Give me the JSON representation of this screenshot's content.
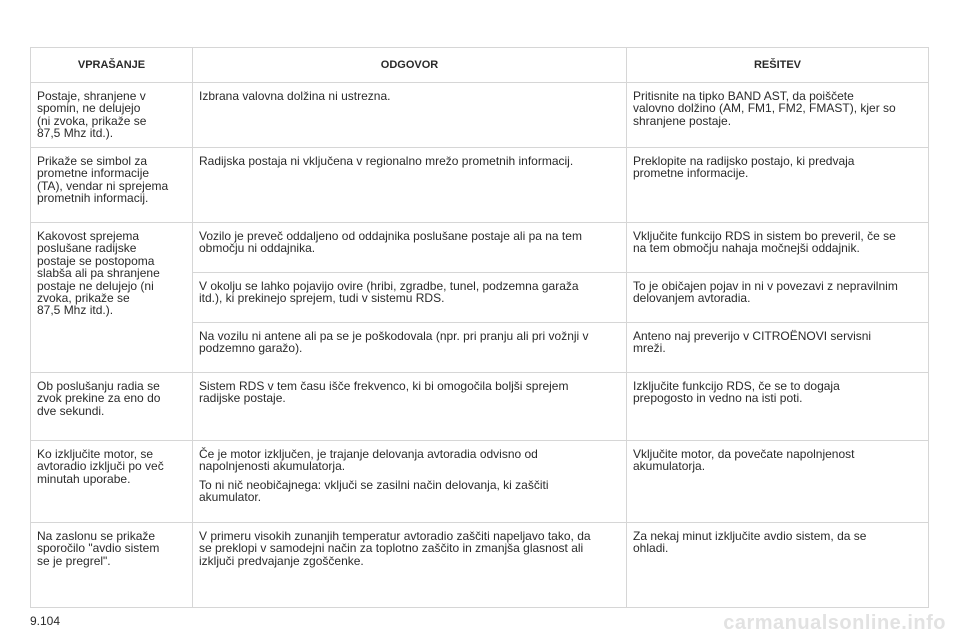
{
  "table": {
    "headers": [
      "VPRAŠANJE",
      "ODGOVOR",
      "REŠITEV"
    ],
    "rows": [
      {
        "question": "Postaje, shranjene v\nspomin, ne delujejo\n(ni zvoka, prikaže se\n87,5 Mhz itd.).",
        "answers": [
          {
            "answer": "Izbrana valovna dolžina ni ustrezna.",
            "solution": "Pritisnite na tipko BAND AST, da poiščete\nvalovno dolžino (AM, FM1, FM2, FMAST), kjer so\nshranjene postaje."
          }
        ]
      },
      {
        "question": "Prikaže se simbol za\nprometne informacije\n(TA), vendar ni sprejema\nprometnih informacij.",
        "answers": [
          {
            "answer": "Radijska postaja ni vključena v regionalno mrežo prometnih informacij.",
            "solution": "Preklopite na radijsko postajo, ki predvaja\nprometne informacije."
          }
        ]
      },
      {
        "question": "Kakovost sprejema\nposlušane radijske\npostaje se postopoma\nslabša ali pa shranjene\npostaje ne delujejo (ni\nzvoka, prikaže se\n87,5 Mhz itd.).",
        "answers": [
          {
            "answer": "Vozilo je preveč oddaljeno od oddajnika poslušane postaje ali pa na tem\nobmočju ni oddajnika.",
            "solution": "Vključite funkcijo RDS in sistem bo preveril, če se\nna tem območju nahaja močnejši oddajnik."
          },
          {
            "answer": "V okolju se lahko pojavijo ovire (hribi, zgradbe, tunel, podzemna garaža\nitd.), ki prekinejo sprejem, tudi v sistemu RDS.",
            "solution": "To je običajen pojav in ni v povezavi z nepravilnim\ndelovanjem avtoradia."
          },
          {
            "answer": "Na vozilu ni antene ali pa se je poškodovala (npr. pri pranju ali pri vožnji v\npodzemno garažo).",
            "solution": "Anteno naj preverijo v CITROËNOVI servisni\nmreži."
          }
        ]
      },
      {
        "question": "Ob poslušanju radia se\nzvok prekine za eno do\ndve sekundi.",
        "answers": [
          {
            "answer": "Sistem RDS v tem času išče frekvenco, ki bi omogočila boljši sprejem\nradijske postaje.",
            "solution": "Izključite funkcijo RDS, če se to dogaja\nprepogosto in vedno na isti poti."
          }
        ]
      },
      {
        "question": "Ko izključite motor, se\navtoradio izključi po več\nminutah uporabe.",
        "answers": [
          {
            "answer": "Če je motor izključen, je trajanje delovanja avtoradia odvisno od\nnapolnjenosti akumulatorja.",
            "answer2": "To ni nič neobičajnega: vključi se zasilni način delovanja, ki zaščiti\nakumulator.",
            "solution": "Vključite motor, da povečate napolnjenost\nakumulatorja."
          }
        ]
      },
      {
        "question": "Na zaslonu se prikaže\nsporočilo \"avdio sistem\nse je pregrel\".",
        "answers": [
          {
            "answer": "V primeru visokih zunanjih temperatur avtoradio zaščiti napeljavo tako, da\nse preklopi v samodejni način za toplotno zaščito in zmanjša glasnost ali\nizključi predvajanje zgoščenke.",
            "solution": "Za nekaj minut izključite avdio sistem, da se\nohladi."
          }
        ]
      }
    ]
  },
  "page_number": "9.104",
  "watermark": "carmanualsonline.info"
}
